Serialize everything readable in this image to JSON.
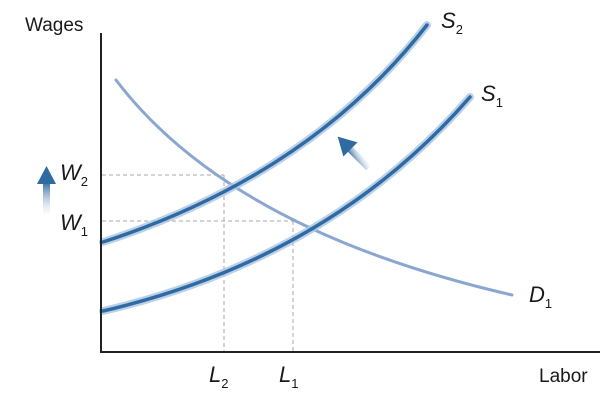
{
  "axes": {
    "y_title": "Wages",
    "x_title": "Labor"
  },
  "curves": {
    "supply_1": {
      "main": "S",
      "sub": "1"
    },
    "supply_2": {
      "main": "S",
      "sub": "2"
    },
    "demand_1": {
      "main": "D",
      "sub": "1"
    }
  },
  "wage_ticks": {
    "w2": {
      "main": "W",
      "sub": "2"
    },
    "w1": {
      "main": "W",
      "sub": "1"
    }
  },
  "labor_ticks": {
    "l2": {
      "main": "L",
      "sub": "2"
    },
    "l1": {
      "main": "L",
      "sub": "1"
    }
  },
  "colors": {
    "supply_stroke": "#2f6aa3",
    "supply_glow": "#aac6e2",
    "demand_stroke": "#8ba7cf",
    "arrow": "#3f78b5",
    "guide": "#a8a8a8",
    "axis": "#222222"
  }
}
